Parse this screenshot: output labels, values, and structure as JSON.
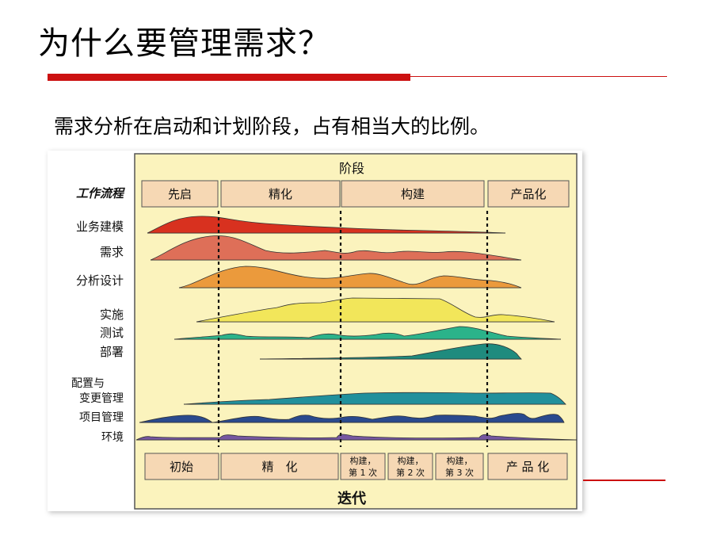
{
  "title": "为什么要管理需求？",
  "subtitle": "需求分析在启动和计划阶段，占有相当大的比例。",
  "diagram": {
    "phase_header": "阶段",
    "workflow_header": "工作流程",
    "phases": [
      "先启",
      "精化",
      "构建",
      "产品化"
    ],
    "workflows": [
      "业务建模",
      "需求",
      "分析设计",
      "实施",
      "测试",
      "部署",
      "配置与",
      "变更管理",
      "项目管理",
      "环境"
    ],
    "iterations": [
      "初始",
      "精　化",
      "构建，",
      "第 1 次",
      "构建，",
      "第 2 次",
      "构建，",
      "第 3 次",
      "产 品 化"
    ],
    "iteration_header": "迭代",
    "colors": {
      "panel": "#fbf3bd",
      "box": "#f6d8b4",
      "business_modeling": "#d8311f",
      "requirements": "#de6f58",
      "analysis_design": "#eb9a3c",
      "implementation": "#f2e65a",
      "test": "#2bb38a",
      "deployment": "#1f8b7e",
      "config_change": "#21909c",
      "project_management": "#2a4a8e",
      "environment": "#7657a1"
    }
  }
}
